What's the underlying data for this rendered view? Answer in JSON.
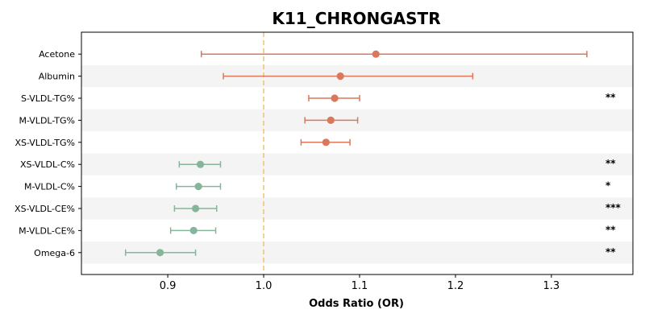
{
  "chart_data": {
    "type": "forest",
    "title": "K11_CHRONGASTR",
    "xlabel": "Odds Ratio (OR)",
    "xlim": [
      0.81,
      1.385
    ],
    "xticks": [
      0.9,
      1.0,
      1.1,
      1.2,
      1.3
    ],
    "xtick_labels": [
      "0.9",
      "1.0",
      "1.1",
      "1.2",
      "1.3"
    ],
    "reference_line": 1.0,
    "grid": false,
    "colors": {
      "risk": "#d9785a",
      "protective": "#86b59b",
      "reference": "#f0c36d",
      "band": "#f4f4f4"
    },
    "rows": [
      {
        "label": "Acetone",
        "or": 1.117,
        "ci_low": 0.935,
        "ci_high": 1.337,
        "sig": ""
      },
      {
        "label": "Albumin",
        "or": 1.08,
        "ci_low": 0.958,
        "ci_high": 1.218,
        "sig": ""
      },
      {
        "label": "S-VLDL-TG%",
        "or": 1.074,
        "ci_low": 1.047,
        "ci_high": 1.1,
        "sig": "**"
      },
      {
        "label": "M-VLDL-TG%",
        "or": 1.07,
        "ci_low": 1.043,
        "ci_high": 1.098,
        "sig": ""
      },
      {
        "label": "XS-VLDL-TG%",
        "or": 1.065,
        "ci_low": 1.039,
        "ci_high": 1.09,
        "sig": ""
      },
      {
        "label": "XS-VLDL-C%",
        "or": 0.934,
        "ci_low": 0.912,
        "ci_high": 0.955,
        "sig": "**"
      },
      {
        "label": "M-VLDL-C%",
        "or": 0.932,
        "ci_low": 0.909,
        "ci_high": 0.955,
        "sig": "*"
      },
      {
        "label": "XS-VLDL-CE%",
        "or": 0.929,
        "ci_low": 0.907,
        "ci_high": 0.951,
        "sig": "***"
      },
      {
        "label": "M-VLDL-CE%",
        "or": 0.927,
        "ci_low": 0.903,
        "ci_high": 0.95,
        "sig": "**"
      },
      {
        "label": "Omega-6",
        "or": 0.892,
        "ci_low": 0.856,
        "ci_high": 0.929,
        "sig": "**"
      }
    ]
  }
}
